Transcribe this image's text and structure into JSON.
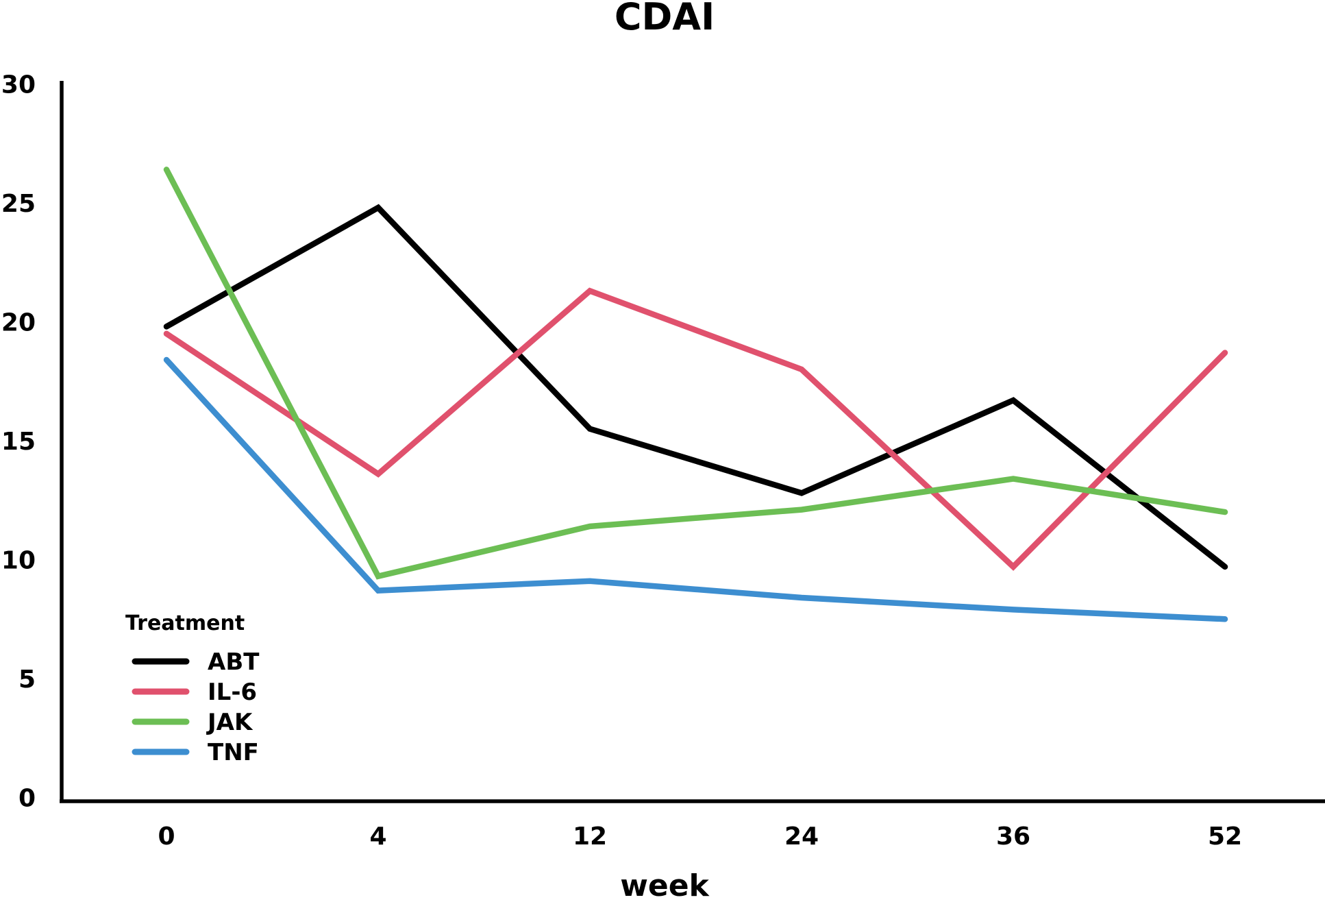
{
  "chart_data": {
    "type": "line",
    "title": "CDAI",
    "xlabel": "week",
    "ylabel": "",
    "categories": [
      "0",
      "4",
      "12",
      "24",
      "36",
      "52"
    ],
    "series": [
      {
        "name": "ABT",
        "color": "#000000",
        "values": [
          19.8,
          24.8,
          15.5,
          12.8,
          16.7,
          9.7
        ]
      },
      {
        "name": "IL-6",
        "color": "#e0516d",
        "values": [
          19.5,
          13.6,
          21.3,
          18.0,
          9.7,
          18.7
        ]
      },
      {
        "name": "JAK",
        "color": "#6cbe54",
        "values": [
          26.4,
          9.3,
          11.4,
          12.1,
          13.4,
          12.0
        ]
      },
      {
        "name": "TNF",
        "color": "#3d8ed0",
        "values": [
          18.4,
          8.7,
          9.1,
          8.4,
          7.9,
          7.5
        ]
      }
    ],
    "legend_title": "Treatment",
    "legend_position": "inside-bottom-left",
    "ylim": [
      0,
      30
    ],
    "ytick_step": 5,
    "yticks": [
      "0",
      "5",
      "10",
      "15",
      "20",
      "25",
      "30"
    ],
    "grid": false,
    "axis_color": "#000000",
    "background_color": "#ffffff"
  }
}
